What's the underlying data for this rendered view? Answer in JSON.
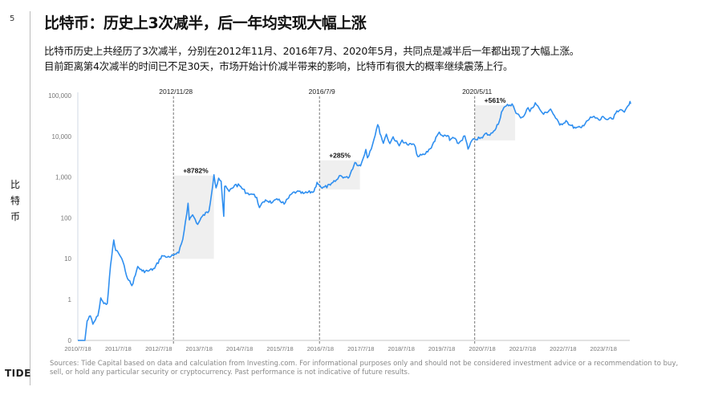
{
  "page_number": "5",
  "title": "比特币：历史上3次减半，后一年均实现大幅上涨",
  "subtitle_lines": [
    "比特币历史上共经历了3次减半，分别在2012年11月、2016年7月、2020年5月，共同点是减半后一年都出现了大幅上涨。",
    "目前距离第4次减半的时间已不足30天，市场开始计价减半带来的影响，比特币有很大的概率继续震荡上行。"
  ],
  "side_label": "比特币",
  "logo": "TIDE",
  "sources": "Sources: Tide Capital based on data and calculation from Investing.com. For informational purposes only and should not be considered investment advice or a recommendation to buy, sell, or hold any particular security or cryptocurrency. Past performance is not indicative of future results.",
  "chart_data": {
    "type": "line",
    "line_color": "#2f8ff0",
    "y_scale": "log",
    "ylim": [
      0,
      100000
    ],
    "y_ticks": [
      "100,000",
      "10,000",
      "1,000",
      "100",
      "10",
      "1",
      "0"
    ],
    "x_ticks": [
      "2010/7/18",
      "2011/7/18",
      "2012/7/18",
      "2013/7/18",
      "2014/7/18",
      "2015/7/18",
      "2016/7/18",
      "2017/7/18",
      "2018/7/18",
      "2019/7/18",
      "2020/7/18",
      "2021/7/18",
      "2022/7/18",
      "2023/7/18"
    ],
    "grid": false,
    "halvings": [
      {
        "date": "2012/11/28",
        "gain": "+8782%",
        "low": 10,
        "high": 1100
      },
      {
        "date": "2016/7/9",
        "gain": "+285%",
        "low": 500,
        "high": 2600
      },
      {
        "date": "2020/5/11",
        "gain": "+561%",
        "low": 8000,
        "high": 58000
      }
    ],
    "series": [
      [
        "2010-07-18",
        0.06
      ],
      [
        "2010-09-20",
        0.06
      ],
      [
        "2010-10-10",
        0.3
      ],
      [
        "2010-11-08",
        0.4
      ],
      [
        "2010-12-01",
        0.25
      ],
      [
        "2011-01-15",
        0.4
      ],
      [
        "2011-02-10",
        1.1
      ],
      [
        "2011-03-10",
        0.8
      ],
      [
        "2011-04-10",
        0.8
      ],
      [
        "2011-05-10",
        7
      ],
      [
        "2011-06-08",
        29
      ],
      [
        "2011-06-25",
        16
      ],
      [
        "2011-07-20",
        14
      ],
      [
        "2011-08-20",
        10
      ],
      [
        "2011-09-20",
        5
      ],
      [
        "2011-10-20",
        3
      ],
      [
        "2011-11-18",
        2.2
      ],
      [
        "2011-12-20",
        4
      ],
      [
        "2012-01-10",
        6.5
      ],
      [
        "2012-02-20",
        5
      ],
      [
        "2012-04-10",
        5
      ],
      [
        "2012-06-10",
        5.8
      ],
      [
        "2012-08-15",
        12
      ],
      [
        "2012-09-20",
        11
      ],
      [
        "2012-11-28",
        12
      ],
      [
        "2013-01-15",
        14
      ],
      [
        "2013-02-20",
        30
      ],
      [
        "2013-04-09",
        230
      ],
      [
        "2013-04-20",
        90
      ],
      [
        "2013-05-20",
        120
      ],
      [
        "2013-07-05",
        70
      ],
      [
        "2013-08-15",
        110
      ],
      [
        "2013-10-15",
        150
      ],
      [
        "2013-11-29",
        1150
      ],
      [
        "2013-12-18",
        550
      ],
      [
        "2014-01-10",
        950
      ],
      [
        "2014-02-01",
        800
      ],
      [
        "2014-02-25",
        110
      ],
      [
        "2014-03-05",
        600
      ],
      [
        "2014-04-15",
        450
      ],
      [
        "2014-06-05",
        650
      ],
      [
        "2014-07-18",
        620
      ],
      [
        "2014-09-20",
        410
      ],
      [
        "2014-11-15",
        380
      ],
      [
        "2014-12-20",
        320
      ],
      [
        "2015-01-14",
        180
      ],
      [
        "2015-03-10",
        280
      ],
      [
        "2015-05-10",
        240
      ],
      [
        "2015-07-10",
        290
      ],
      [
        "2015-08-25",
        220
      ],
      [
        "2015-11-04",
        400
      ],
      [
        "2015-12-15",
        440
      ],
      [
        "2016-02-15",
        400
      ],
      [
        "2016-05-20",
        450
      ],
      [
        "2016-06-17",
        750
      ],
      [
        "2016-07-09",
        650
      ],
      [
        "2016-08-02",
        540
      ],
      [
        "2016-10-15",
        640
      ],
      [
        "2016-12-20",
        900
      ],
      [
        "2017-01-05",
        1100
      ],
      [
        "2017-03-25",
        950
      ],
      [
        "2017-05-25",
        2300
      ],
      [
        "2017-07-15",
        1900
      ],
      [
        "2017-09-01",
        4800
      ],
      [
        "2017-09-15",
        3000
      ],
      [
        "2017-11-01",
        6500
      ],
      [
        "2017-12-17",
        19500
      ],
      [
        "2018-02-06",
        6800
      ],
      [
        "2018-03-05",
        11400
      ],
      [
        "2018-04-06",
        6700
      ],
      [
        "2018-05-05",
        9800
      ],
      [
        "2018-06-29",
        5900
      ],
      [
        "2018-07-25",
        8200
      ],
      [
        "2018-09-10",
        6300
      ],
      [
        "2018-11-10",
        6400
      ],
      [
        "2018-12-15",
        3200
      ],
      [
        "2019-02-10",
        3600
      ],
      [
        "2019-04-05",
        5000
      ],
      [
        "2019-06-26",
        12800
      ],
      [
        "2019-08-01",
        10000
      ],
      [
        "2019-09-20",
        10100
      ],
      [
        "2019-09-28",
        8000
      ],
      [
        "2019-10-26",
        9500
      ],
      [
        "2019-12-17",
        6700
      ],
      [
        "2020-02-12",
        10300
      ],
      [
        "2020-03-12",
        4900
      ],
      [
        "2020-04-29",
        8800
      ],
      [
        "2020-05-11",
        8600
      ],
      [
        "2020-07-20",
        9200
      ],
      [
        "2020-08-15",
        11900
      ],
      [
        "2020-09-25",
        10700
      ],
      [
        "2020-10-30",
        13600
      ],
      [
        "2020-12-20",
        24000
      ],
      [
        "2021-01-08",
        40000
      ],
      [
        "2021-02-20",
        56000
      ],
      [
        "2021-04-14",
        63000
      ],
      [
        "2021-05-19",
        37000
      ],
      [
        "2021-06-22",
        31000
      ],
      [
        "2021-07-20",
        30000
      ],
      [
        "2021-09-05",
        51000
      ],
      [
        "2021-09-22",
        41000
      ],
      [
        "2021-11-09",
        67000
      ],
      [
        "2021-12-20",
        46000
      ],
      [
        "2022-01-23",
        35000
      ],
      [
        "2022-03-28",
        47000
      ],
      [
        "2022-05-12",
        28000
      ],
      [
        "2022-06-18",
        19000
      ],
      [
        "2022-08-14",
        24500
      ],
      [
        "2022-09-20",
        19000
      ],
      [
        "2022-11-09",
        16000
      ],
      [
        "2022-12-30",
        16500
      ],
      [
        "2023-02-15",
        24000
      ],
      [
        "2023-04-14",
        30300
      ],
      [
        "2023-06-15",
        25000
      ],
      [
        "2023-07-14",
        31000
      ],
      [
        "2023-08-18",
        26000
      ],
      [
        "2023-10-15",
        27000
      ],
      [
        "2023-10-26",
        34500
      ],
      [
        "2023-12-08",
        43500
      ],
      [
        "2024-01-23",
        39500
      ],
      [
        "2024-02-15",
        52000
      ],
      [
        "2024-03-14",
        72000
      ],
      [
        "2024-03-20",
        63000
      ]
    ]
  }
}
